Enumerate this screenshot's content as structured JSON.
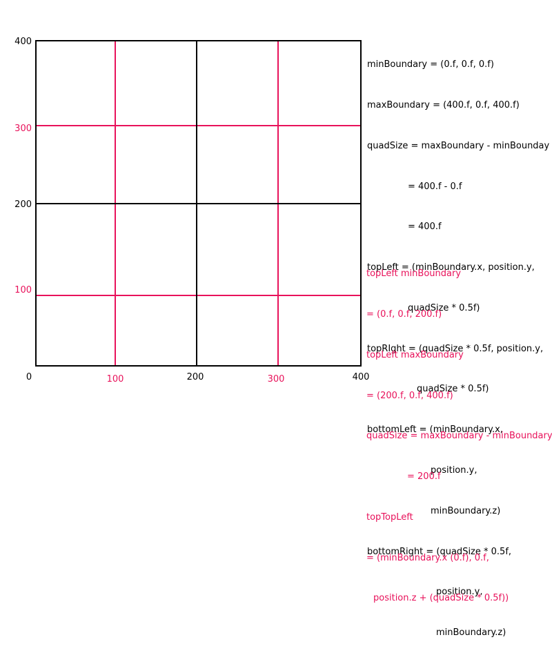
{
  "colors": {
    "black": "#000000",
    "pink": "#e8115a"
  },
  "axis": {
    "x_labels_black": [
      "0",
      "200",
      "400"
    ],
    "x_labels_pink": [
      "100",
      "300"
    ],
    "y_labels_black": [
      "400",
      "200"
    ],
    "y_labels_pink": [
      "300",
      "100"
    ]
  },
  "notes_black": [
    "minBoundary = (0.f, 0.f, 0.f)",
    "maxBoundary = (400.f, 0.f, 400.f)",
    "quadSize = maxBoundary - minBounday",
    "= 400.f - 0.f",
    "= 400.f",
    "topLeft = (minBoundary.x, position.y,",
    "quadSize * 0.5f)",
    "topRIght = (quadSize * 0.5f, position.y,",
    "quadSize * 0.5f)",
    "bottomLeft = (minBoundary.x,",
    "position.y,",
    "minBoundary.z)",
    "bottomRight = (quadSize * 0.5f,",
    "position.y,",
    "minBoundary.z)"
  ],
  "notes_pink": [
    "topLeft minBoundary",
    "= (0.f, 0.f, 200.f)",
    "topLeft maxBoundary",
    "= (200.f, 0.f, 400.f)",
    "quadSize = maxBoundary - minBoundary",
    "= 200.f",
    "topTopLeft",
    "= (minBoundary.x (0.f), 0.f,",
    "position.z + (quadSize * 0.5f))"
  ]
}
